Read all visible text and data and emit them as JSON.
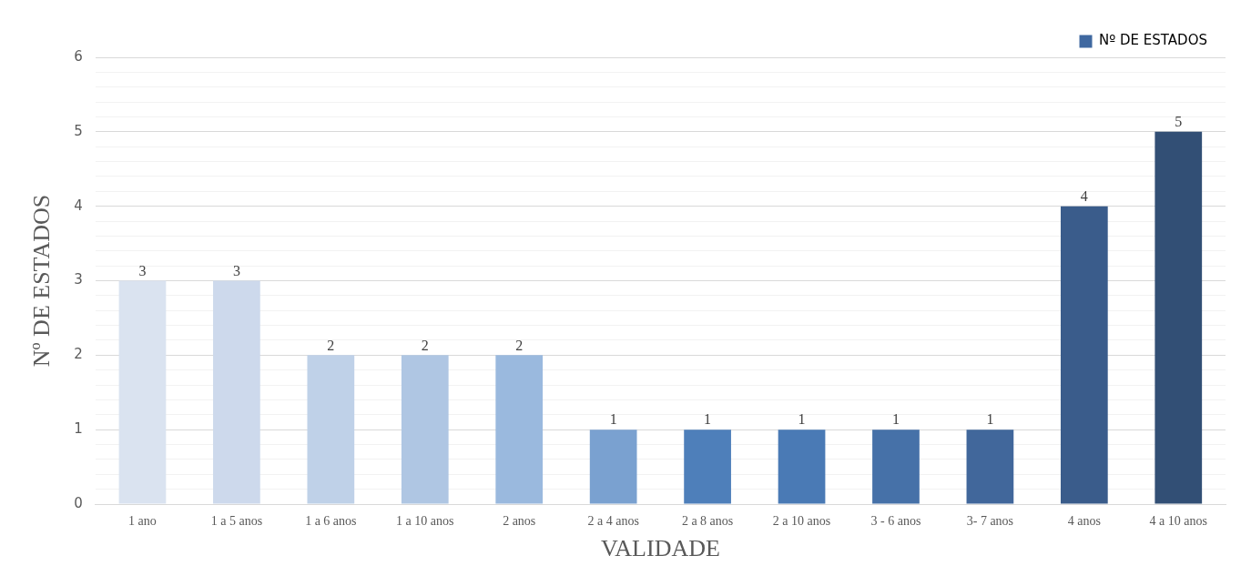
{
  "chart_data": {
    "type": "bar",
    "xlabel": "VALIDADE",
    "ylabel": "Nº DE ESTADOS",
    "categories": [
      "1 ano",
      "1 a 5 anos",
      "1 a 6 anos",
      "1 a 10 anos",
      "2 anos",
      "2 a 4 anos",
      "2 a 8 anos",
      "2 a 10 anos",
      "3 - 6 anos",
      "3- 7 anos",
      "4 anos",
      "4 a 10 anos"
    ],
    "series": [
      {
        "name": "Nº DE ESTADOS",
        "color": "#3f68a0",
        "values": [
          3,
          3,
          2,
          2,
          2,
          1,
          1,
          1,
          1,
          1,
          4,
          5
        ],
        "colors": [
          "#dae3f0",
          "#cdd9ec",
          "#bfd1e8",
          "#afc6e3",
          "#9ab9de",
          "#7aa1d0",
          "#4e7fba",
          "#4a7ab5",
          "#4671a8",
          "#41679b",
          "#3a5c8b",
          "#324f75"
        ]
      }
    ],
    "ylim": [
      0,
      6
    ],
    "yticks": [
      0,
      {
        "value": 0.2,
        "label": null
      },
      {
        "value": 0.4,
        "label": null
      },
      {
        "value": 0.6,
        "label": null
      },
      {
        "value": 0.8,
        "label": null
      },
      1,
      {
        "value": 1.2,
        "label": null
      },
      {
        "value": 1.4,
        "label": null
      },
      {
        "value": 1.6,
        "label": null
      },
      {
        "value": 1.8,
        "label": null
      },
      2,
      {
        "value": 2.2,
        "label": null
      },
      {
        "value": 2.4,
        "label": null
      },
      {
        "value": 2.6,
        "label": null
      },
      {
        "value": 2.8,
        "label": null
      },
      3,
      {
        "value": 3.2,
        "label": null
      },
      {
        "value": 3.4,
        "label": null
      },
      {
        "value": 3.6,
        "label": null
      },
      {
        "value": 3.8,
        "label": null
      },
      4,
      {
        "value": 4.2,
        "label": null
      },
      {
        "value": 4.4,
        "label": null
      },
      {
        "value": 4.6,
        "label": null
      },
      {
        "value": 4.8,
        "label": null
      },
      5,
      {
        "value": 5.2,
        "label": null
      },
      {
        "value": 5.4,
        "label": null
      },
      {
        "value": 5.6,
        "label": null
      },
      {
        "value": 5.8,
        "label": null
      },
      6
    ],
    "grid": "y",
    "legend": "top",
    "data_labels": true
  }
}
